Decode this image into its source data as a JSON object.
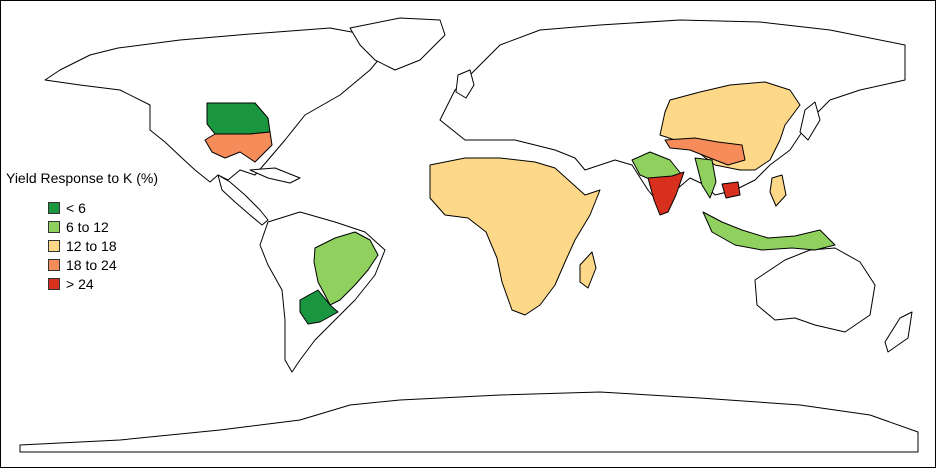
{
  "legend": {
    "title": "Yield Response to K (%)",
    "items": [
      {
        "label": "< 6",
        "color": "#1a9641"
      },
      {
        "label": "6 to 12",
        "color": "#8fd05f"
      },
      {
        "label": "12 to 18",
        "color": "#fdd889"
      },
      {
        "label": "18 to 24",
        "color": "#f68c59"
      },
      {
        "label": "> 24",
        "color": "#d7301f"
      }
    ]
  },
  "regions": {
    "usa_north": "< 6",
    "usa_south": "18 to 24",
    "brazil": "6 to 12",
    "southern_cone": "< 6",
    "africa": "12 to 18",
    "india_north": "6 to 12",
    "india_south": "> 24",
    "china": "12 to 18",
    "southwest_china": "18 to 24",
    "myanmar": "6 to 12",
    "cambodia": "> 24",
    "philippines": "12 to 18",
    "indonesia": "6 to 12"
  }
}
